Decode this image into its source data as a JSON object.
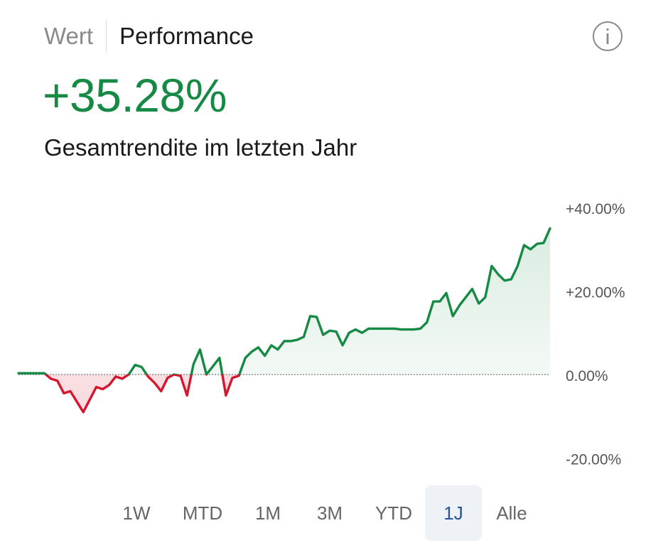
{
  "tabs": {
    "wert": "Wert",
    "performance": "Performance"
  },
  "headline": {
    "value": "+35.28%",
    "subtitle": "Gesamtrendite im letzten Jahr"
  },
  "colors": {
    "positive": "#168a44",
    "negative": "#d4172e",
    "active_range_bg": "#eef2f7",
    "active_range_text": "#24529c"
  },
  "icons": {
    "info": "info-icon"
  },
  "chart_data": {
    "type": "area",
    "title": "",
    "xlabel": "",
    "ylabel": "",
    "ylim": [
      -20,
      40
    ],
    "y_ticks": [
      40,
      20,
      0,
      -20
    ],
    "y_tick_labels": [
      "+40.00%",
      "+20.00%",
      "0.00%",
      "-20.00%"
    ],
    "zero_line": true,
    "series": [
      {
        "values": [
          0.3,
          0.3,
          0.3,
          0.3,
          0.3,
          -1,
          -1.5,
          -4.5,
          -4,
          -6.5,
          -9,
          -6,
          -3,
          -3.5,
          -2.5,
          -0.5,
          -1,
          0,
          2.3,
          1.8,
          -0.5,
          -2,
          -4,
          -0.8,
          0,
          -0.3,
          -5,
          2.5,
          6,
          0,
          2,
          4,
          -5,
          -0.8,
          -0.3,
          4,
          5.5,
          6.5,
          4.5,
          7,
          6,
          8,
          8,
          8.3,
          9,
          14,
          13.8,
          9.5,
          10.5,
          10.3,
          7,
          10,
          10.8,
          10,
          11,
          11,
          11,
          11,
          11,
          10.8,
          10.8,
          10.8,
          11,
          12.5,
          17.5,
          17.5,
          19.5,
          14,
          16.5,
          18.5,
          20.5,
          17,
          18.5,
          26,
          24,
          22.5,
          22.8,
          26,
          31,
          30,
          31.3,
          31.5,
          35
        ]
      }
    ]
  },
  "ranges": {
    "items": [
      "1W",
      "MTD",
      "1M",
      "3M",
      "YTD",
      "1J",
      "Alle"
    ],
    "active_index": 5
  }
}
